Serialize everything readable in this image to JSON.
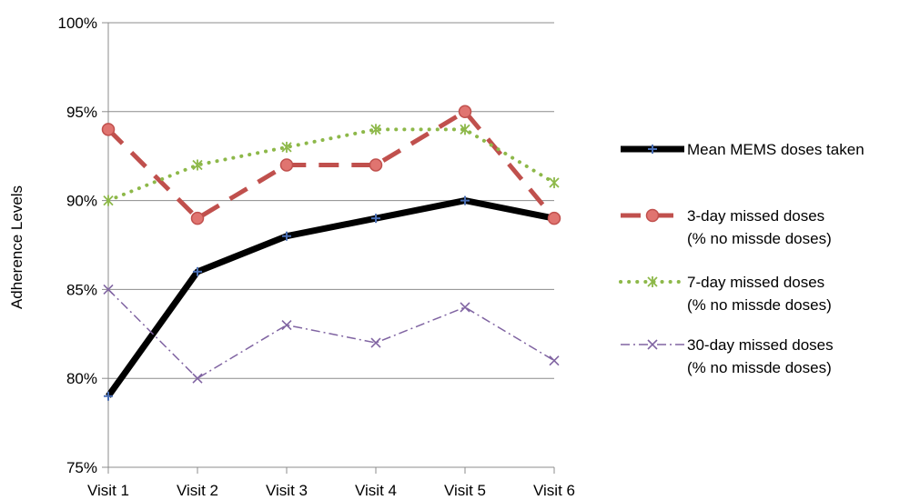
{
  "chart_data": {
    "type": "line",
    "title": "",
    "xlabel": "",
    "ylabel": "Adherence Levels",
    "categories": [
      "Visit 1",
      "Visit 2",
      "Visit 3",
      "Visit 4",
      "Visit 5",
      "Visit 6"
    ],
    "ylim": [
      75,
      100
    ],
    "yticks": [
      75,
      80,
      85,
      90,
      95,
      100
    ],
    "ytick_labels": [
      "75%",
      "80%",
      "85%",
      "90%",
      "95%",
      "100%"
    ],
    "grid": true,
    "legend_position": "right",
    "series": [
      {
        "name": "Mean MEMS doses taken",
        "name_lines": [
          "Mean MEMS doses taken"
        ],
        "values": [
          79,
          86,
          88,
          89,
          90,
          89
        ],
        "color": "#000000",
        "marker_color": "#4a6fb5",
        "style": "solid",
        "marker": "plus"
      },
      {
        "name": "3-day missed doses (% no missde doses)",
        "name_lines": [
          "3-day missed doses",
          "(% no missde doses)"
        ],
        "values": [
          94,
          89,
          92,
          92,
          95,
          89
        ],
        "color": "#c0504d",
        "marker_color": "#c0504d",
        "style": "dashed",
        "marker": "circle"
      },
      {
        "name": "7-day missed doses (% no missde doses)",
        "name_lines": [
          "7-day missed doses",
          "(% no missde doses)"
        ],
        "values": [
          90,
          92,
          93,
          94,
          94,
          91
        ],
        "color": "#8db849",
        "marker_color": "#8db849",
        "style": "dotted",
        "marker": "asterisk"
      },
      {
        "name": "30-day missed doses (% no missde doses)",
        "name_lines": [
          "30-day missed doses",
          "(% no missde doses)"
        ],
        "values": [
          85,
          80,
          83,
          82,
          84,
          81
        ],
        "color": "#8064a2",
        "marker_color": "#8064a2",
        "style": "dashdot",
        "marker": "x"
      }
    ]
  }
}
